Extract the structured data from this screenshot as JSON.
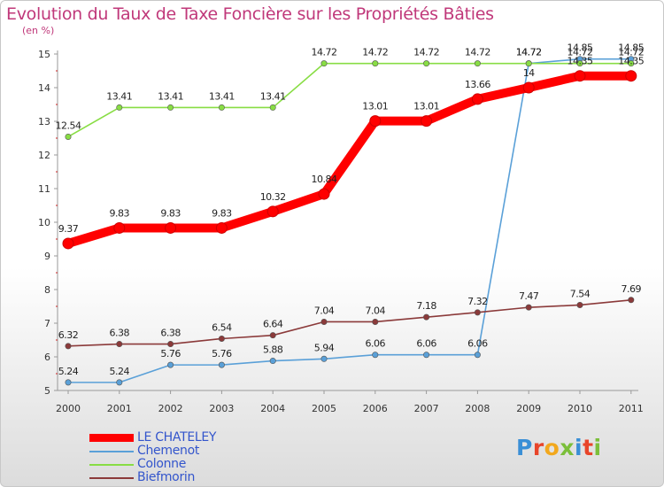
{
  "header": {
    "title": "Evolution du Taux de Taxe Foncière sur les Propriétés Bâties",
    "subtitle": "(en %)"
  },
  "logo": {
    "letters": [
      "P",
      "r",
      "o",
      "x",
      "i",
      "t",
      "i"
    ],
    "colors": [
      "#3a8fd6",
      "#e8452a",
      "#f2a81d",
      "#7bbf3a",
      "#3a8fd6",
      "#e8452a",
      "#7bbf3a"
    ]
  },
  "chart_data": {
    "type": "line",
    "title": "Evolution du Taux de Taxe Foncière sur les Propriétés Bâties",
    "ylabel": "(en %)",
    "xlabel": "",
    "x": [
      "2000",
      "2001",
      "2002",
      "2003",
      "2004",
      "2005",
      "2006",
      "2007",
      "2008",
      "2009",
      "2010",
      "2011"
    ],
    "ylim": [
      5,
      15
    ],
    "yticks": [
      "5",
      "6",
      "7",
      "8",
      "9",
      "10",
      "11",
      "12",
      "13",
      "14",
      "15"
    ],
    "grid": false,
    "legend_position": "bottom-left",
    "series": [
      {
        "name": "LE CHATELEY",
        "color": "#ff0000",
        "width": "thick",
        "values": [
          9.37,
          9.83,
          9.83,
          9.83,
          10.32,
          10.84,
          13.01,
          13.01,
          13.66,
          14,
          14.35,
          14.35
        ],
        "labels": [
          "9.37",
          "9.83",
          "9.83",
          "9.83",
          "10.32",
          "10.84",
          "13.01",
          "13.01",
          "13.66",
          "14",
          "14.35",
          "14.35"
        ]
      },
      {
        "name": "Chemenot",
        "color": "#5aa0d8",
        "width": "thin",
        "values": [
          5.24,
          5.24,
          5.76,
          5.76,
          5.88,
          5.94,
          6.06,
          6.06,
          6.06,
          14.72,
          14.85,
          14.85
        ],
        "labels": [
          "5.24",
          "5.24",
          "5.76",
          "5.76",
          "5.88",
          "5.94",
          "6.06",
          "6.06",
          "6.06",
          "14.72",
          "14.85",
          "14.85"
        ]
      },
      {
        "name": "Colonne",
        "color": "#88dd44",
        "width": "thin",
        "values": [
          12.54,
          13.41,
          13.41,
          13.41,
          13.41,
          14.72,
          14.72,
          14.72,
          14.72,
          14.72,
          14.72,
          14.72
        ],
        "labels": [
          "12.54",
          "13.41",
          "13.41",
          "13.41",
          "13.41",
          "14.72",
          "14.72",
          "14.72",
          "14.72",
          "14.72",
          "14.72",
          "14.72"
        ]
      },
      {
        "name": "Biefmorin",
        "color": "#8b3a3a",
        "width": "thin",
        "values": [
          6.32,
          6.38,
          6.38,
          6.54,
          6.64,
          7.04,
          7.04,
          7.18,
          7.32,
          7.47,
          7.54,
          7.69
        ],
        "labels": [
          "6.32",
          "6.38",
          "6.38",
          "6.54",
          "6.64",
          "7.04",
          "7.04",
          "7.18",
          "7.32",
          "7.47",
          "7.54",
          "7.69"
        ]
      }
    ]
  }
}
